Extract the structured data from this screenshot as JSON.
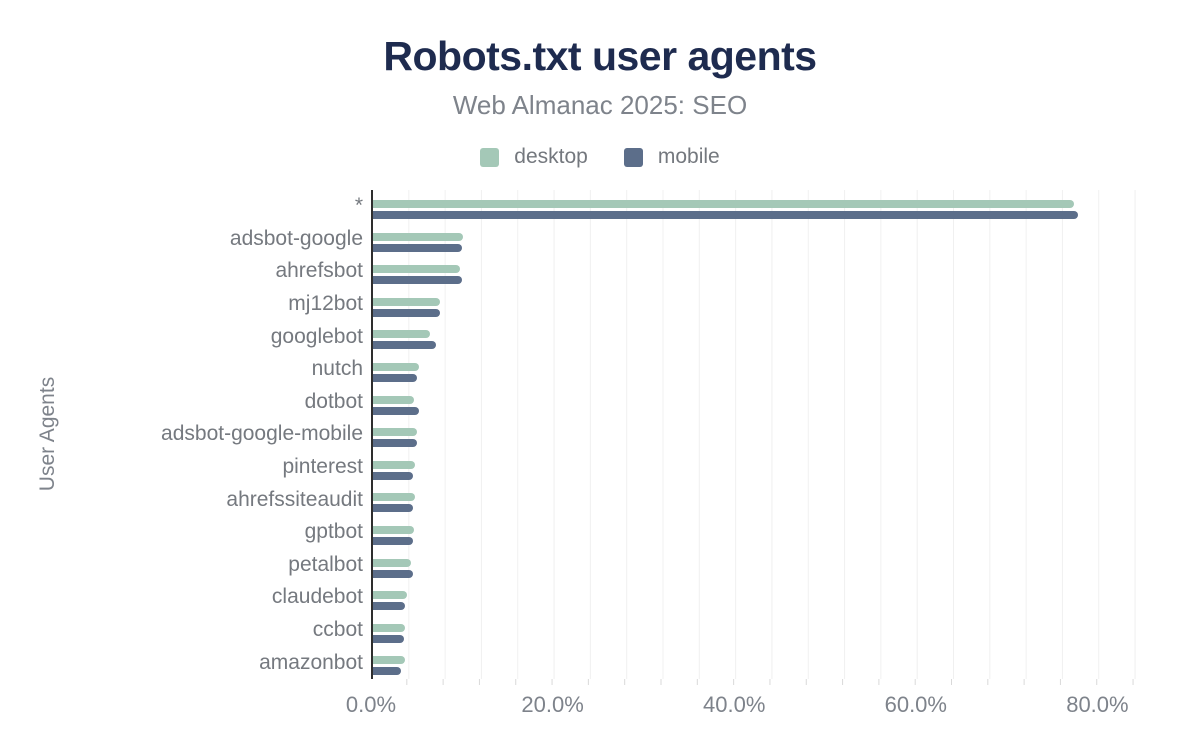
{
  "header": {
    "title": "Robots.txt user agents",
    "subtitle": "Web Almanac 2025: SEO"
  },
  "legend": [
    {
      "label": "desktop",
      "color": "#a4c8b7"
    },
    {
      "label": "mobile",
      "color": "#5c6e8a"
    }
  ],
  "colors": {
    "title": "#1e2b4f",
    "muted_text": "#7e838b",
    "category_text": "#75797f",
    "axis_line": "#2e2e2e",
    "gridline": "#f0f0f0",
    "tick": "#d9d9d9",
    "desktop": "#a4c8b7",
    "mobile": "#5c6e8a"
  },
  "chart_data": {
    "type": "bar",
    "orientation": "horizontal",
    "title": "Robots.txt user agents",
    "subtitle": "Web Almanac 2025: SEO",
    "ylabel": "User Agents",
    "xlabel": "",
    "xlim": [
      0,
      84.8
    ],
    "grid": "vertical minor gridlines every 4%",
    "legend_position": "top-center",
    "value_unit": "%",
    "categories": [
      "*",
      "adsbot-google",
      "ahrefsbot",
      "mj12bot",
      "googlebot",
      "nutch",
      "dotbot",
      "adsbot-google-mobile",
      "pinterest",
      "ahrefssiteaudit",
      "gptbot",
      "petalbot",
      "claudebot",
      "ccbot",
      "amazonbot"
    ],
    "series": [
      {
        "name": "desktop",
        "color": "#a4c8b7",
        "values": [
          77.2,
          9.9,
          9.6,
          7.4,
          6.3,
          5.1,
          4.5,
          4.9,
          4.6,
          4.6,
          4.5,
          4.2,
          3.7,
          3.5,
          3.5
        ]
      },
      {
        "name": "mobile",
        "color": "#5c6e8a",
        "values": [
          77.6,
          9.8,
          9.8,
          7.4,
          6.9,
          4.9,
          5.1,
          4.8,
          4.4,
          4.4,
          4.4,
          4.4,
          3.5,
          3.4,
          3.1
        ]
      }
    ],
    "x_ticks": [
      {
        "label": "0.0%",
        "value": 0
      },
      {
        "label": "20.0%",
        "value": 20
      },
      {
        "label": "40.0%",
        "value": 40
      },
      {
        "label": "60.0%",
        "value": 60
      },
      {
        "label": "80.0%",
        "value": 80
      }
    ]
  }
}
